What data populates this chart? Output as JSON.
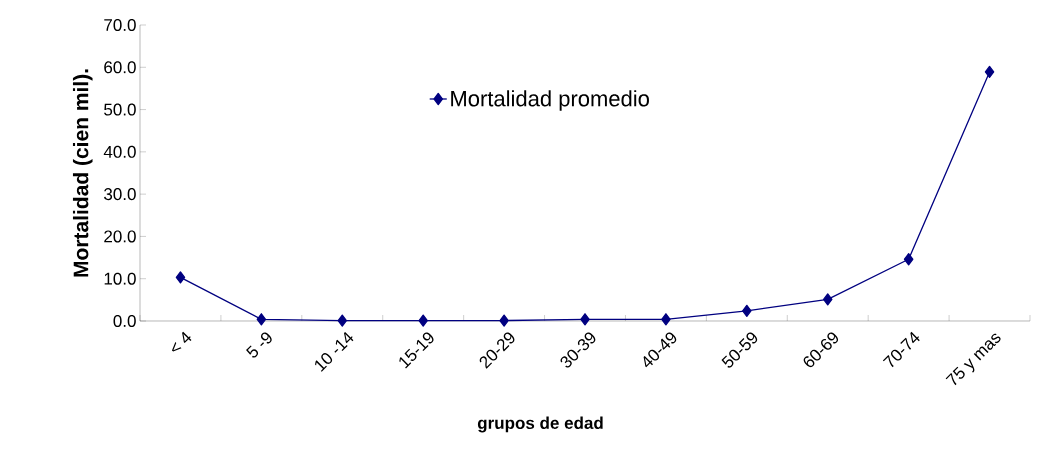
{
  "chart_data": {
    "type": "line",
    "xlabel": "grupos de edad",
    "ylabel": "Mortalidad (cien mil).",
    "categories": [
      "< 4",
      "5 -9",
      "10 -14",
      "15-19",
      "20-29",
      "30-39",
      "40-49",
      "50-59",
      "60-69",
      "70-74",
      "75 y mas"
    ],
    "series": [
      {
        "name": "Mortalidad promedio",
        "color": "#000080",
        "values": [
          10.3,
          0.4,
          0.1,
          0.1,
          0.1,
          0.4,
          0.4,
          2.4,
          5.1,
          14.6,
          58.9
        ]
      }
    ],
    "ylim": [
      0,
      70
    ],
    "yticks": [
      {
        "value": 0,
        "label": "0.0"
      },
      {
        "value": 10,
        "label": "10.0"
      },
      {
        "value": 20,
        "label": "20.0"
      },
      {
        "value": 30,
        "label": "30.0"
      },
      {
        "value": 40,
        "label": "40.0"
      },
      {
        "value": 50,
        "label": "50.0"
      },
      {
        "value": 60,
        "label": "60.0"
      },
      {
        "value": 70,
        "label": "70.0"
      }
    ],
    "marker": "diamond",
    "line_style": "solid",
    "legend": "top",
    "grid": false
  }
}
